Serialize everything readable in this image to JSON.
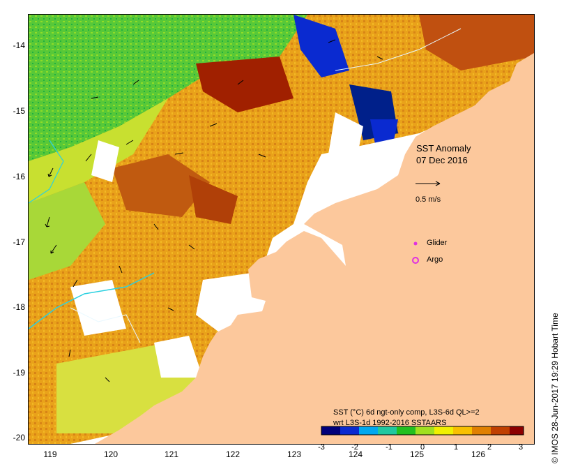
{
  "map": {
    "title": "SST Anomaly",
    "date": "07 Dec 2016",
    "velocity_scale_label": "0.5 m/s",
    "lat_ticks": [
      "-14",
      "-15",
      "-16",
      "-17",
      "-18",
      "-19",
      "-20"
    ],
    "lon_ticks": [
      "119",
      "120",
      "121",
      "122",
      "123",
      "124",
      "125",
      "126"
    ],
    "colors": {
      "land": "#fcc89c",
      "ocean_nodata": "#ffffff",
      "glider": "#e030e0",
      "argo": "#e030e0",
      "contour": "#2ad0e0"
    }
  },
  "legend": {
    "glider_label": "Glider",
    "argo_label": "Argo",
    "colorbar_title_line1": "SST (°C) 6d ngt-only comp, L3S-6d QL>=2",
    "colorbar_title_line2": "wrt L3S-1d 1992-2016 SSTAARS",
    "colorbar_ticks": [
      "-3",
      "-2",
      "-1",
      "0",
      "1",
      "2",
      "3"
    ],
    "colorbar_colors": [
      "#00007a",
      "#0a2ad0",
      "#00a8f0",
      "#20c8a0",
      "#22c020",
      "#a0e020",
      "#f0f000",
      "#f8c000",
      "#e08000",
      "#c04000",
      "#8c0000"
    ]
  },
  "credit": "© IMOS 28-Jun-2017 19:29 Hobart Time"
}
